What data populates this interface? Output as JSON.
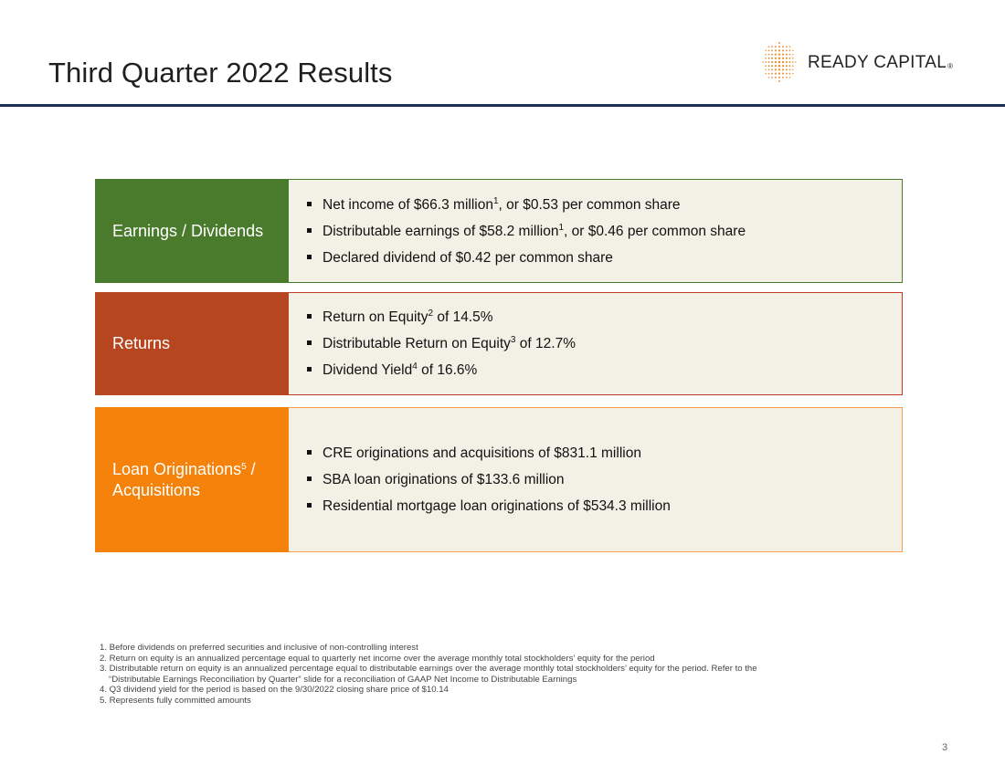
{
  "slide": {
    "title": "Third Quarter 2022 Results",
    "page_number": "3"
  },
  "logo": {
    "name": "READY CAPITAL",
    "reg_mark": "®",
    "dot_color": "#e8963a"
  },
  "colors": {
    "earnings": "#4a7a2c",
    "returns": "#b5461f",
    "loans": "#f5820a",
    "panel_bg": "#f3f0e5",
    "rule": "#1c2f55"
  },
  "rows": [
    {
      "label": "Earnings / Dividends",
      "bullets": [
        {
          "a": "Net income of $66.3 million",
          "sup": "1",
          "b": ", or $0.53 per common share"
        },
        {
          "a": "Distributable earnings of $58.2 million",
          "sup": "1",
          "b": ", or $0.46 per common share"
        },
        {
          "a": "Declared dividend of $0.42 per common share",
          "sup": "",
          "b": ""
        }
      ]
    },
    {
      "label": "Returns",
      "bullets": [
        {
          "a": "Return on Equity",
          "sup": "2",
          "b": " of 14.5%"
        },
        {
          "a": "Distributable Return on Equity",
          "sup": "3",
          "b": " of 12.7%"
        },
        {
          "a": "Dividend Yield",
          "sup": "4",
          "b": " of 16.6%"
        }
      ]
    },
    {
      "label_a": "Loan Originations",
      "label_sup": "5",
      "label_b": " / Acquisitions",
      "bullets": [
        {
          "a": "CRE originations and acquisitions of $831.1 million",
          "sup": "",
          "b": ""
        },
        {
          "a": "SBA loan originations of $133.6 million",
          "sup": "",
          "b": ""
        },
        {
          "a": "Residential mortgage loan originations of $534.3 million",
          "sup": "",
          "b": ""
        }
      ]
    }
  ],
  "footnotes": [
    "1. Before dividends on preferred securities and inclusive of non-controlling interest",
    "2. Return on equity is an annualized percentage equal to quarterly net income over the average monthly total stockholders’ equity for the period",
    "3. Distributable return on equity is an annualized percentage equal to distributable earnings over the average monthly total stockholders’ equity for the period. Refer to the",
    "“Distributable Earnings Reconciliation by Quarter” slide for a reconciliation of GAAP Net Income to Distributable Earnings",
    "4. Q3 dividend yield for the period is based on the 9/30/2022 closing share price of $10.14",
    "5. Represents fully committed amounts"
  ]
}
